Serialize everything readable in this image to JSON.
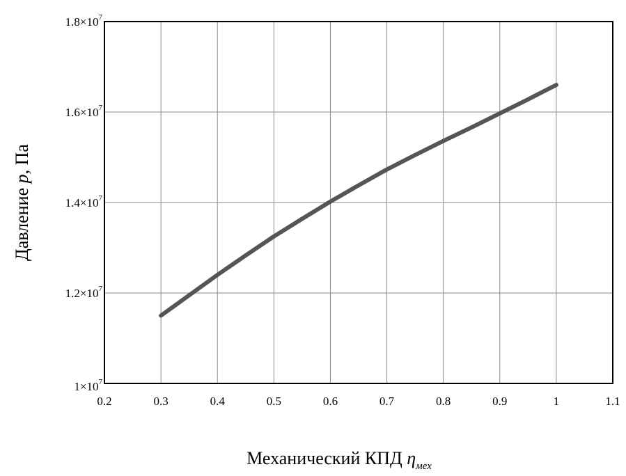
{
  "chart_data": {
    "type": "line",
    "title": "",
    "xlabel": {
      "text": "Механический КПД ",
      "symbol": "η",
      "subscript": "мех"
    },
    "ylabel": {
      "text": "Давление ",
      "symbol": "p",
      "suffix": ", Па"
    },
    "xlim": [
      0.2,
      1.1
    ],
    "ylim": [
      10000000,
      18000000
    ],
    "x_ticks": [
      0.2,
      0.3,
      0.4,
      0.5,
      0.6,
      0.7,
      0.8,
      0.9,
      1.0,
      1.1
    ],
    "x_tick_labels": [
      "0.2",
      "0.3",
      "0.4",
      "0.5",
      "0.6",
      "0.7",
      "0.8",
      "0.9",
      "1",
      "1.1"
    ],
    "y_ticks": [
      10000000,
      12000000,
      14000000,
      16000000,
      18000000
    ],
    "y_tick_labels": [
      {
        "mantissa": "1×10",
        "exp": "7"
      },
      {
        "mantissa": "1.2×10",
        "exp": "7"
      },
      {
        "mantissa": "1.4×10",
        "exp": "7"
      },
      {
        "mantissa": "1.6×10",
        "exp": "7"
      },
      {
        "mantissa": "1.8×10",
        "exp": "7"
      }
    ],
    "grid": true,
    "legend": "none",
    "series": [
      {
        "color": "#555555",
        "x": [
          0.3,
          0.35,
          0.4,
          0.45,
          0.5,
          0.55,
          0.6,
          0.65,
          0.7,
          0.75,
          0.8,
          0.85,
          0.9,
          0.95,
          1.0
        ],
        "y": [
          11500000,
          11950000,
          12400000,
          12830000,
          13250000,
          13640000,
          14020000,
          14380000,
          14730000,
          15050000,
          15360000,
          15660000,
          15970000,
          16280000,
          16600000
        ]
      }
    ]
  }
}
